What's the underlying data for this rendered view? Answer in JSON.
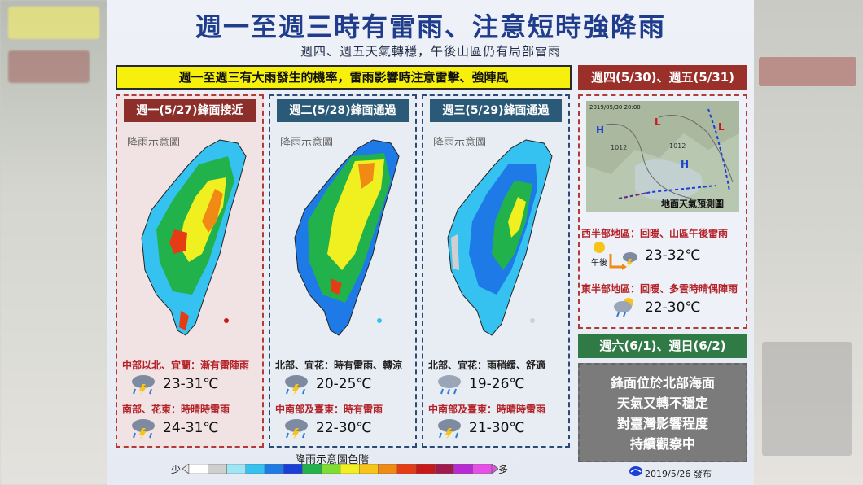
{
  "title": "週一至週三時有雷雨、注意短時強降雨",
  "subtitle": "週四、週五天氣轉穩，午後山區仍有局部雷雨",
  "banner": "週一至週三有大雨發生的機率，雷雨影響時注意雷擊、強陣風",
  "days": [
    {
      "header": "週一(5/27)鋒面接近",
      "map_caption": "降雨示意圖",
      "region_a": "中部以北、宜蘭：漸有雷陣雨",
      "temp_a": "23-31℃",
      "icon_a": "thunder-rain-icon",
      "region_b": "南部、花東：時晴時雷雨",
      "temp_b": "24-31℃",
      "icon_b": "thunder-rain-icon"
    },
    {
      "header": "週二(5/28)鋒面通過",
      "map_caption": "降雨示意圖",
      "region_a": "北部、宜花：時有雷雨、轉涼",
      "temp_a": "20-25℃",
      "icon_a": "thunder-rain-icon",
      "region_b": "中南部及臺東：時有雷雨",
      "temp_b": "22-30℃",
      "icon_b": "thunder-rain-icon"
    },
    {
      "header": "週三(5/29)鋒面通過",
      "map_caption": "降雨示意圖",
      "region_a": "北部、宜花：雨稍緩、舒適",
      "temp_a": "19-26℃",
      "icon_a": "cloud-rain-icon",
      "region_b": "中南部及臺東：時晴時雷雨",
      "temp_b": "21-30℃",
      "icon_b": "thunder-rain-icon"
    }
  ],
  "legend": {
    "title": "降雨示意圖色階",
    "less": "少",
    "more": "多",
    "colors": [
      "#ffffff",
      "#cfcfcf",
      "#9fe6f5",
      "#36c2f0",
      "#1e7ae6",
      "#1a3fd6",
      "#22b24c",
      "#7fdc32",
      "#f0f020",
      "#f7c418",
      "#f08a14",
      "#e63c14",
      "#c81818",
      "#a01a50",
      "#b82ad2",
      "#e650e6"
    ]
  },
  "side": {
    "head1": "週四(5/30)、週五(5/31)",
    "map_label": "地面天氣預測圖",
    "map_stamp": "2019/05/30 20:00",
    "iso_1012": "1012",
    "west_label": "西半部地區：回暖、山區午後雷雨",
    "west_afternoon": "午後",
    "west_temp": "23-32℃",
    "east_label": "東半部地區：回暖、多雲時晴偶陣雨",
    "east_temp": "22-30℃",
    "head2": "週六(6/1)、週日(6/2)",
    "outlook": [
      "鋒面位於北部海面",
      "天氣又轉不穩定",
      "對臺灣影響程度",
      "持續觀察中"
    ]
  },
  "publish": "2019/5/26 發布"
}
